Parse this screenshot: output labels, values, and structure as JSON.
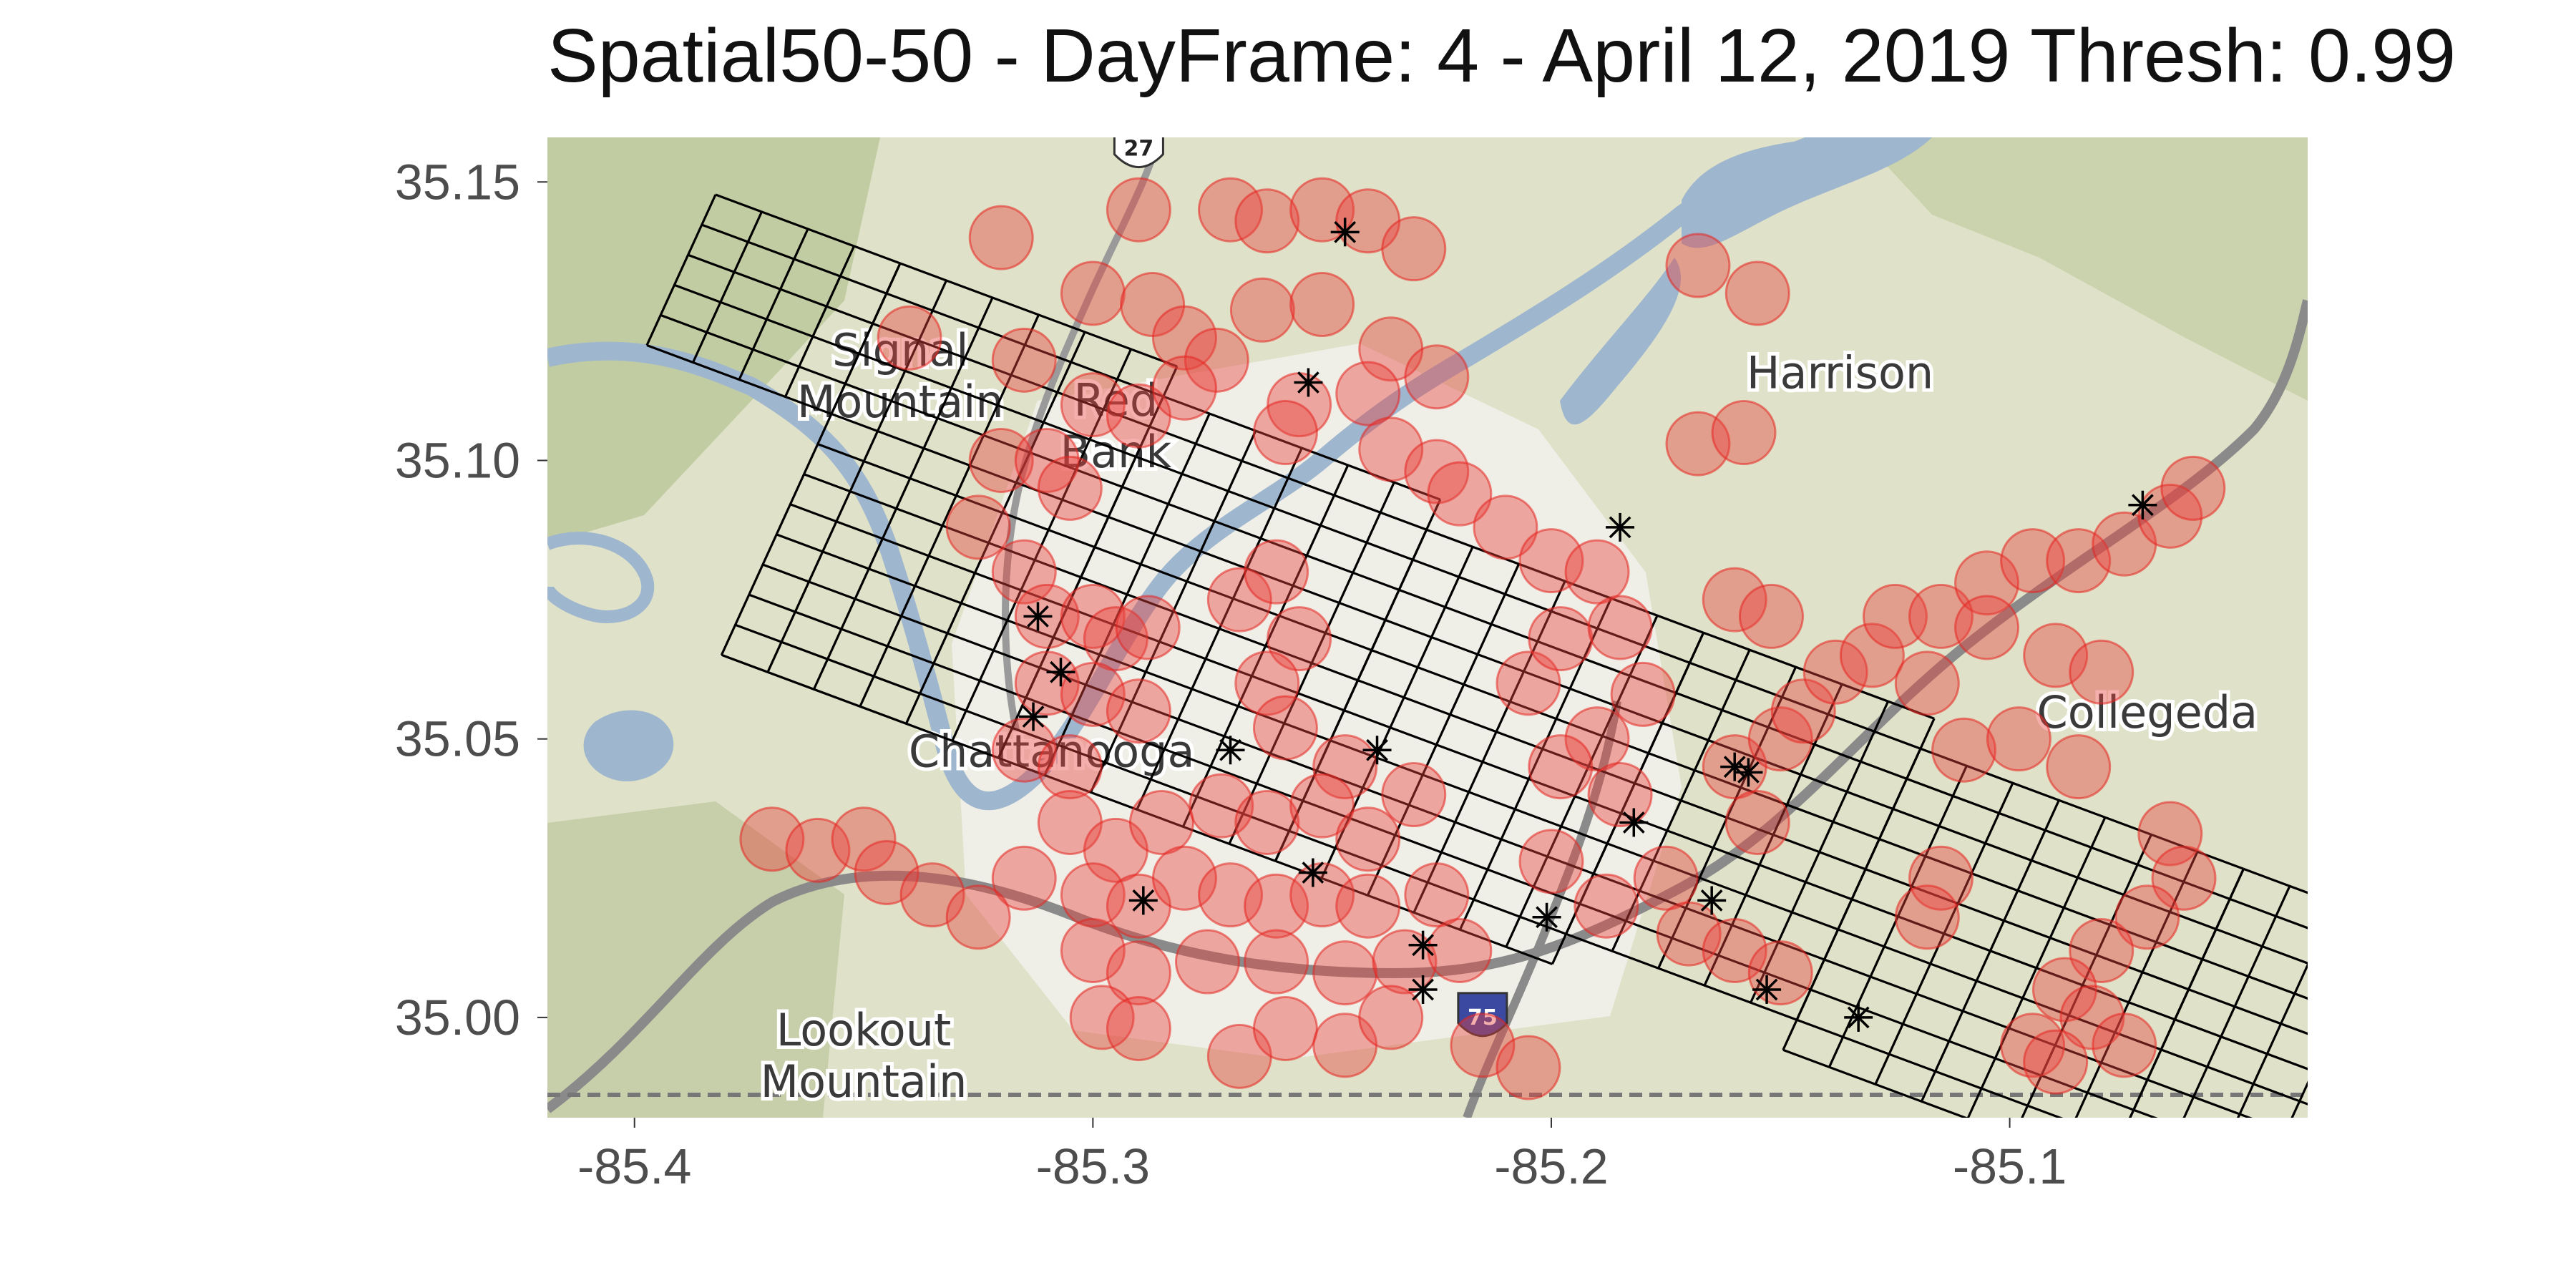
{
  "title": "Spatial50-50 - DayFrame: 4 - April 12, 2019 Thresh: 0.99",
  "map": {
    "place_labels": [
      {
        "name": "Signal Mountain",
        "lines": [
          "Signal",
          "Mountain"
        ],
        "lon": -85.342,
        "lat": 35.117
      },
      {
        "name": "Red Bank",
        "lines": [
          "Red",
          "Bank"
        ],
        "lon": -85.295,
        "lat": 35.108
      },
      {
        "name": "Harrison",
        "lines": [
          "Harrison"
        ],
        "lon": -85.137,
        "lat": 35.113
      },
      {
        "name": "Chattanooga",
        "lines": [
          "Chattanooga"
        ],
        "lon": -85.309,
        "lat": 35.045
      },
      {
        "name": "Collegedale",
        "lines": [
          "Collegeda"
        ],
        "lon": -85.07,
        "lat": 35.052
      },
      {
        "name": "Lookout Mountain",
        "lines": [
          "Lookout",
          "Mountain"
        ],
        "lon": -85.35,
        "lat": 34.995
      }
    ],
    "highway_shields": [
      {
        "label": "27",
        "lon": -85.29,
        "lat": 35.156
      },
      {
        "label": "75",
        "lon": -85.215,
        "lat": 35.0
      }
    ],
    "colors": {
      "terrain": "#dfe2c8",
      "water": "#9fb6cf",
      "urban": "#f2f1ec",
      "forest": "#b9c79a",
      "grid": "#000000",
      "buffer": "#e8403c",
      "buffer_edge": "#e62420"
    }
  },
  "chart_data": {
    "type": "scatter",
    "title": "Spatial50-50 - DayFrame: 4 - April 12, 2019 Thresh: 0.99",
    "xlabel": "",
    "ylabel": "",
    "xlim": [
      -85.419,
      -85.035
    ],
    "ylim": [
      34.982,
      35.158
    ],
    "xticks": [
      -85.4,
      -85.3,
      -85.2,
      -85.1
    ],
    "xtick_labels": [
      "-85.4",
      "-85.3",
      "-85.2",
      "-85.1"
    ],
    "yticks": [
      35.0,
      35.05,
      35.1,
      35.15
    ],
    "ytick_labels": [
      "35.00",
      "35.05",
      "35.10",
      "35.15"
    ],
    "grid": "black rotated fishnet over study area",
    "series": [
      {
        "marker": "circle",
        "color": "#e8403c",
        "values": [
          [
            -85.32,
            35.14
          ],
          [
            -85.29,
            35.145
          ],
          [
            -85.27,
            35.145
          ],
          [
            -85.262,
            35.143
          ],
          [
            -85.25,
            35.145
          ],
          [
            -85.24,
            35.143
          ],
          [
            -85.23,
            35.138
          ],
          [
            -85.3,
            35.13
          ],
          [
            -85.287,
            35.128
          ],
          [
            -85.28,
            35.122
          ],
          [
            -85.273,
            35.118
          ],
          [
            -85.263,
            35.127
          ],
          [
            -85.25,
            35.128
          ],
          [
            -85.235,
            35.12
          ],
          [
            -85.225,
            35.115
          ],
          [
            -85.34,
            35.122
          ],
          [
            -85.315,
            35.118
          ],
          [
            -85.3,
            35.11
          ],
          [
            -85.29,
            35.108
          ],
          [
            -85.28,
            35.113
          ],
          [
            -85.255,
            35.11
          ],
          [
            -85.24,
            35.112
          ],
          [
            -85.32,
            35.1
          ],
          [
            -85.31,
            35.1
          ],
          [
            -85.305,
            35.095
          ],
          [
            -85.325,
            35.088
          ],
          [
            -85.315,
            35.08
          ],
          [
            -85.258,
            35.105
          ],
          [
            -85.235,
            35.102
          ],
          [
            -85.225,
            35.098
          ],
          [
            -85.22,
            35.094
          ],
          [
            -85.21,
            35.088
          ],
          [
            -85.2,
            35.082
          ],
          [
            -85.19,
            35.08
          ],
          [
            -85.168,
            35.103
          ],
          [
            -85.158,
            35.105
          ],
          [
            -85.168,
            35.135
          ],
          [
            -85.155,
            35.13
          ],
          [
            -85.31,
            35.072
          ],
          [
            -85.3,
            35.072
          ],
          [
            -85.295,
            35.068
          ],
          [
            -85.288,
            35.07
          ],
          [
            -85.268,
            35.075
          ],
          [
            -85.26,
            35.08
          ],
          [
            -85.255,
            35.068
          ],
          [
            -85.31,
            35.06
          ],
          [
            -85.3,
            35.058
          ],
          [
            -85.29,
            35.055
          ],
          [
            -85.315,
            35.048
          ],
          [
            -85.305,
            35.045
          ],
          [
            -85.262,
            35.06
          ],
          [
            -85.258,
            35.052
          ],
          [
            -85.245,
            35.045
          ],
          [
            -85.23,
            35.04
          ],
          [
            -85.305,
            35.035
          ],
          [
            -85.295,
            35.03
          ],
          [
            -85.285,
            35.035
          ],
          [
            -85.272,
            35.038
          ],
          [
            -85.262,
            35.035
          ],
          [
            -85.25,
            35.038
          ],
          [
            -85.24,
            35.032
          ],
          [
            -85.315,
            35.025
          ],
          [
            -85.3,
            35.022
          ],
          [
            -85.29,
            35.02
          ],
          [
            -85.28,
            35.025
          ],
          [
            -85.27,
            35.022
          ],
          [
            -85.26,
            35.02
          ],
          [
            -85.25,
            35.022
          ],
          [
            -85.24,
            35.02
          ],
          [
            -85.225,
            35.022
          ],
          [
            -85.3,
            35.012
          ],
          [
            -85.29,
            35.008
          ],
          [
            -85.275,
            35.01
          ],
          [
            -85.26,
            35.01
          ],
          [
            -85.245,
            35.008
          ],
          [
            -85.232,
            35.01
          ],
          [
            -85.22,
            35.012
          ],
          [
            -85.298,
            35.0
          ],
          [
            -85.29,
            34.998
          ],
          [
            -85.268,
            34.993
          ],
          [
            -85.258,
            34.998
          ],
          [
            -85.245,
            34.995
          ],
          [
            -85.235,
            35.0
          ],
          [
            -85.215,
            34.995
          ],
          [
            -85.205,
            34.991
          ],
          [
            -85.37,
            35.032
          ],
          [
            -85.36,
            35.03
          ],
          [
            -85.35,
            35.032
          ],
          [
            -85.345,
            35.026
          ],
          [
            -85.335,
            35.022
          ],
          [
            -85.325,
            35.018
          ],
          [
            -85.205,
            35.06
          ],
          [
            -85.198,
            35.068
          ],
          [
            -85.185,
            35.07
          ],
          [
            -85.18,
            35.058
          ],
          [
            -85.19,
            35.05
          ],
          [
            -85.185,
            35.04
          ],
          [
            -85.198,
            35.045
          ],
          [
            -85.2,
            35.028
          ],
          [
            -85.188,
            35.02
          ],
          [
            -85.175,
            35.025
          ],
          [
            -85.17,
            35.015
          ],
          [
            -85.16,
            35.012
          ],
          [
            -85.15,
            35.008
          ],
          [
            -85.16,
            35.045
          ],
          [
            -85.15,
            35.05
          ],
          [
            -85.145,
            35.055
          ],
          [
            -85.155,
            35.035
          ],
          [
            -85.138,
            35.062
          ],
          [
            -85.13,
            35.065
          ],
          [
            -85.125,
            35.072
          ],
          [
            -85.115,
            35.072
          ],
          [
            -85.105,
            35.078
          ],
          [
            -85.095,
            35.082
          ],
          [
            -85.085,
            35.082
          ],
          [
            -85.075,
            35.085
          ],
          [
            -85.065,
            35.09
          ],
          [
            -85.06,
            35.095
          ],
          [
            -85.105,
            35.07
          ],
          [
            -85.09,
            35.065
          ],
          [
            -85.08,
            35.062
          ],
          [
            -85.118,
            35.06
          ],
          [
            -85.16,
            35.075
          ],
          [
            -85.152,
            35.072
          ],
          [
            -85.11,
            35.048
          ],
          [
            -85.098,
            35.05
          ],
          [
            -85.085,
            35.045
          ],
          [
            -85.065,
            35.033
          ],
          [
            -85.062,
            35.025
          ],
          [
            -85.07,
            35.018
          ],
          [
            -85.08,
            35.012
          ],
          [
            -85.088,
            35.005
          ],
          [
            -85.082,
            35.0
          ],
          [
            -85.075,
            34.995
          ],
          [
            -85.095,
            34.995
          ],
          [
            -85.09,
            34.992
          ],
          [
            -85.115,
            35.025
          ],
          [
            -85.118,
            35.018
          ]
        ]
      },
      {
        "marker": "asterisk",
        "color": "#000000",
        "values": [
          [
            -85.245,
            35.141
          ],
          [
            -85.253,
            35.114
          ],
          [
            -85.185,
            35.088
          ],
          [
            -85.071,
            35.092
          ],
          [
            -85.312,
            35.072
          ],
          [
            -85.307,
            35.062
          ],
          [
            -85.313,
            35.054
          ],
          [
            -85.27,
            35.048
          ],
          [
            -85.238,
            35.048
          ],
          [
            -85.252,
            35.026
          ],
          [
            -85.289,
            35.021
          ],
          [
            -85.228,
            35.013
          ],
          [
            -85.228,
            35.005
          ],
          [
            -85.201,
            35.018
          ],
          [
            -85.182,
            35.035
          ],
          [
            -85.165,
            35.021
          ],
          [
            -85.16,
            35.045
          ],
          [
            -85.157,
            35.044
          ],
          [
            -85.153,
            35.005
          ],
          [
            -85.133,
            35.0
          ]
        ]
      }
    ]
  }
}
